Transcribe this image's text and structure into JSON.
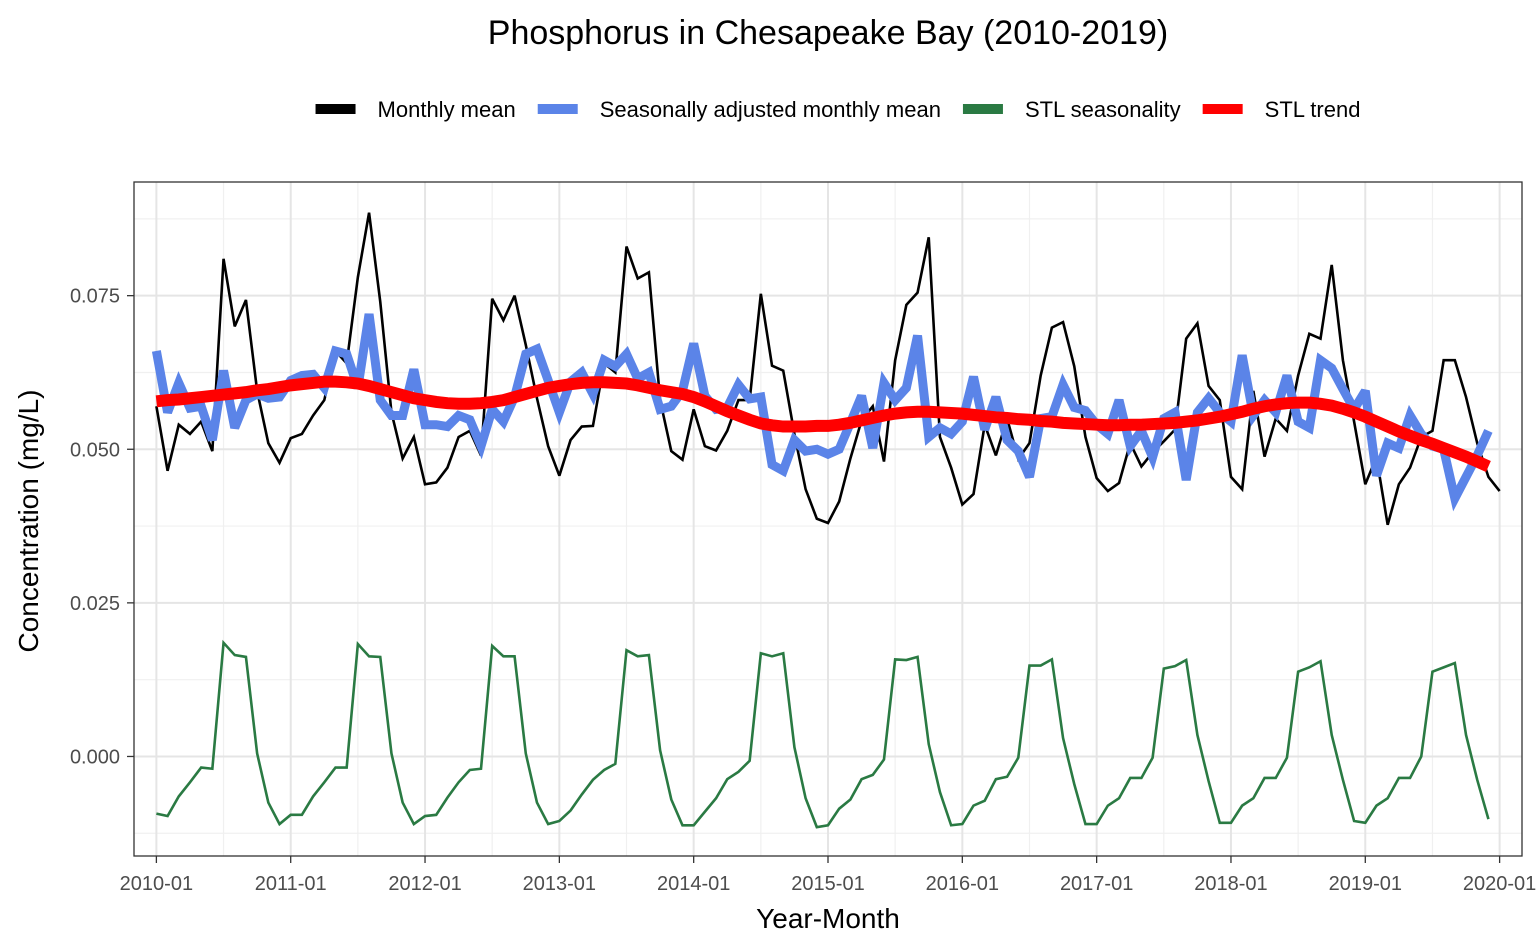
{
  "chart_data": {
    "type": "line",
    "title": "Phosphorus in Chesapeake Bay (2010-2019)",
    "xlabel": "Year-Month",
    "ylabel": "Concentration (mg/L)",
    "x_start": "2010-01",
    "x_ticks": [
      "2010-01",
      "2011-01",
      "2012-01",
      "2013-01",
      "2014-01",
      "2015-01",
      "2016-01",
      "2017-01",
      "2018-01",
      "2019-01",
      "2020-01"
    ],
    "xlim": [
      "2009-11",
      "2020-03"
    ],
    "y_ticks": [
      0.0,
      0.025,
      0.05,
      0.075
    ],
    "y_tick_labels": [
      "0.000",
      "0.025",
      "0.050",
      "0.075"
    ],
    "ylim": [
      -0.0162,
      0.0935
    ],
    "grid": true,
    "legend_position": "top",
    "series": [
      {
        "name": "Monthly mean",
        "color": "#000000",
        "values": [
          0.057,
          0.0465,
          0.054,
          0.0525,
          0.0545,
          0.0497,
          0.081,
          0.07,
          0.0743,
          0.0595,
          0.051,
          0.0478,
          0.0518,
          0.0525,
          0.0555,
          0.058,
          0.066,
          0.064,
          0.078,
          0.0885,
          0.074,
          0.056,
          0.0485,
          0.052,
          0.0443,
          0.0446,
          0.047,
          0.052,
          0.053,
          0.049,
          0.0745,
          0.071,
          0.075,
          0.067,
          0.0583,
          0.0505,
          0.0457,
          0.0515,
          0.0537,
          0.0538,
          0.064,
          0.0625,
          0.083,
          0.0778,
          0.0788,
          0.058,
          0.0497,
          0.0483,
          0.0565,
          0.0505,
          0.0498,
          0.053,
          0.058,
          0.058,
          0.0753,
          0.0636,
          0.0628,
          0.0525,
          0.0435,
          0.0387,
          0.038,
          0.0415,
          0.0485,
          0.0547,
          0.057,
          0.048,
          0.0645,
          0.0735,
          0.0755,
          0.0845,
          0.052,
          0.047,
          0.041,
          0.0427,
          0.054,
          0.049,
          0.055,
          0.0484,
          0.051,
          0.062,
          0.0698,
          0.0707,
          0.0635,
          0.052,
          0.0453,
          0.0432,
          0.0445,
          0.051,
          0.0472,
          0.0495,
          0.0513,
          0.0532,
          0.068,
          0.0705,
          0.0603,
          0.058,
          0.0455,
          0.0435,
          0.0595,
          0.0488,
          0.055,
          0.053,
          0.062,
          0.0688,
          0.068,
          0.08,
          0.0645,
          0.0545,
          0.0443,
          0.0487,
          0.0377,
          0.0443,
          0.047,
          0.052,
          0.053,
          0.0645,
          0.0645,
          0.0585,
          0.051,
          0.0455,
          0.0432
        ]
      },
      {
        "name": "Seasonally adjusted monthly mean",
        "color": "#5b84e8",
        "values": [
          0.066,
          0.056,
          0.0608,
          0.0567,
          0.057,
          0.0515,
          0.0628,
          0.0535,
          0.058,
          0.059,
          0.0583,
          0.0585,
          0.0612,
          0.062,
          0.0622,
          0.06,
          0.066,
          0.0655,
          0.06,
          0.072,
          0.058,
          0.0555,
          0.0555,
          0.063,
          0.054,
          0.054,
          0.0537,
          0.0555,
          0.0548,
          0.0505,
          0.0565,
          0.0545,
          0.0585,
          0.0655,
          0.0663,
          0.0612,
          0.056,
          0.061,
          0.0625,
          0.059,
          0.0645,
          0.0635,
          0.0655,
          0.0615,
          0.0625,
          0.0565,
          0.057,
          0.0595,
          0.0672,
          0.0587,
          0.0565,
          0.0568,
          0.0605,
          0.0582,
          0.0585,
          0.0475,
          0.0465,
          0.0515,
          0.0497,
          0.05,
          0.0492,
          0.05,
          0.0543,
          0.0587,
          0.0502,
          0.0608,
          0.058,
          0.06,
          0.0685,
          0.052,
          0.0535,
          0.0525,
          0.0545,
          0.0618,
          0.0532,
          0.0585,
          0.0515,
          0.0497,
          0.0455,
          0.055,
          0.0553,
          0.0605,
          0.0568,
          0.0563,
          0.054,
          0.0525,
          0.058,
          0.0505,
          0.053,
          0.0487,
          0.055,
          0.056,
          0.045,
          0.056,
          0.0583,
          0.056,
          0.0545,
          0.0653,
          0.0555,
          0.058,
          0.056,
          0.062,
          0.0545,
          0.0535,
          0.0645,
          0.0632,
          0.0598,
          0.0565,
          0.0595,
          0.0457,
          0.051,
          0.0502,
          0.0555,
          0.0525,
          0.0505,
          0.05,
          0.042,
          0.0455,
          0.049,
          0.053
        ]
      },
      {
        "name": "STL seasonality",
        "color": "#2a7a43",
        "values": [
          -0.0093,
          -0.0097,
          -0.0065,
          -0.0042,
          -0.0018,
          -0.002,
          0.0185,
          0.0165,
          0.0162,
          0.0005,
          -0.0075,
          -0.011,
          -0.0095,
          -0.0095,
          -0.0065,
          -0.0042,
          -0.0018,
          -0.0018,
          0.0183,
          0.0163,
          0.0162,
          0.0005,
          -0.0075,
          -0.011,
          -0.0097,
          -0.0095,
          -0.0067,
          -0.0042,
          -0.0022,
          -0.002,
          0.018,
          0.0163,
          0.0163,
          0.0005,
          -0.0075,
          -0.011,
          -0.0105,
          -0.0088,
          -0.0062,
          -0.0038,
          -0.0022,
          -0.0012,
          0.0173,
          0.0163,
          0.0165,
          0.001,
          -0.007,
          -0.0112,
          -0.0112,
          -0.009,
          -0.0068,
          -0.0037,
          -0.0025,
          -0.0007,
          0.0168,
          0.0163,
          0.0168,
          0.0015,
          -0.0068,
          -0.0115,
          -0.0112,
          -0.0085,
          -0.007,
          -0.0037,
          -0.003,
          -0.0005,
          0.0158,
          0.0157,
          0.0162,
          0.002,
          -0.0058,
          -0.0112,
          -0.011,
          -0.008,
          -0.0072,
          -0.0037,
          -0.0033,
          -0.0002,
          0.0148,
          0.0148,
          0.0158,
          0.003,
          -0.0045,
          -0.011,
          -0.011,
          -0.008,
          -0.0068,
          -0.0035,
          -0.0035,
          -0.0002,
          0.0143,
          0.0147,
          0.0157,
          0.0035,
          -0.004,
          -0.0108,
          -0.0108,
          -0.008,
          -0.0068,
          -0.0035,
          -0.0035,
          -0.0002,
          0.0138,
          0.0145,
          0.0155,
          0.0035,
          -0.0038,
          -0.0105,
          -0.0108,
          -0.008,
          -0.0068,
          -0.0035,
          -0.0035,
          0.0,
          0.0138,
          0.0145,
          0.0152,
          0.0035,
          -0.0038,
          -0.0102
        ]
      },
      {
        "name": "STL trend",
        "color": "#ff0000",
        "values": [
          0.0578,
          0.058,
          0.0581,
          0.0583,
          0.0585,
          0.0587,
          0.0589,
          0.0591,
          0.0593,
          0.0596,
          0.0598,
          0.0601,
          0.0604,
          0.0606,
          0.0608,
          0.061,
          0.061,
          0.0609,
          0.0607,
          0.0603,
          0.0598,
          0.0593,
          0.0588,
          0.0583,
          0.058,
          0.0577,
          0.0575,
          0.0574,
          0.0574,
          0.0575,
          0.0577,
          0.058,
          0.0585,
          0.059,
          0.0595,
          0.06,
          0.0603,
          0.0606,
          0.0608,
          0.0609,
          0.0609,
          0.0608,
          0.0607,
          0.0604,
          0.06,
          0.0596,
          0.0593,
          0.059,
          0.0585,
          0.0578,
          0.057,
          0.0562,
          0.0555,
          0.0548,
          0.0542,
          0.0539,
          0.0537,
          0.0537,
          0.0537,
          0.0538,
          0.0538,
          0.054,
          0.0543,
          0.0547,
          0.0551,
          0.0555,
          0.0558,
          0.056,
          0.0561,
          0.0561,
          0.056,
          0.0559,
          0.0558,
          0.0556,
          0.0554,
          0.0552,
          0.0551,
          0.0549,
          0.0548,
          0.0546,
          0.0545,
          0.0543,
          0.0542,
          0.0541,
          0.054,
          0.0539,
          0.0539,
          0.054,
          0.054,
          0.0541,
          0.0542,
          0.0543,
          0.0545,
          0.0547,
          0.055,
          0.0553,
          0.0557,
          0.0561,
          0.0566,
          0.057,
          0.0573,
          0.0575,
          0.0576,
          0.0576,
          0.0574,
          0.0571,
          0.0566,
          0.056,
          0.0553,
          0.0545,
          0.0537,
          0.0529,
          0.0522,
          0.0515,
          0.0509,
          0.0502,
          0.0495,
          0.0488,
          0.048,
          0.0472
        ]
      }
    ]
  }
}
